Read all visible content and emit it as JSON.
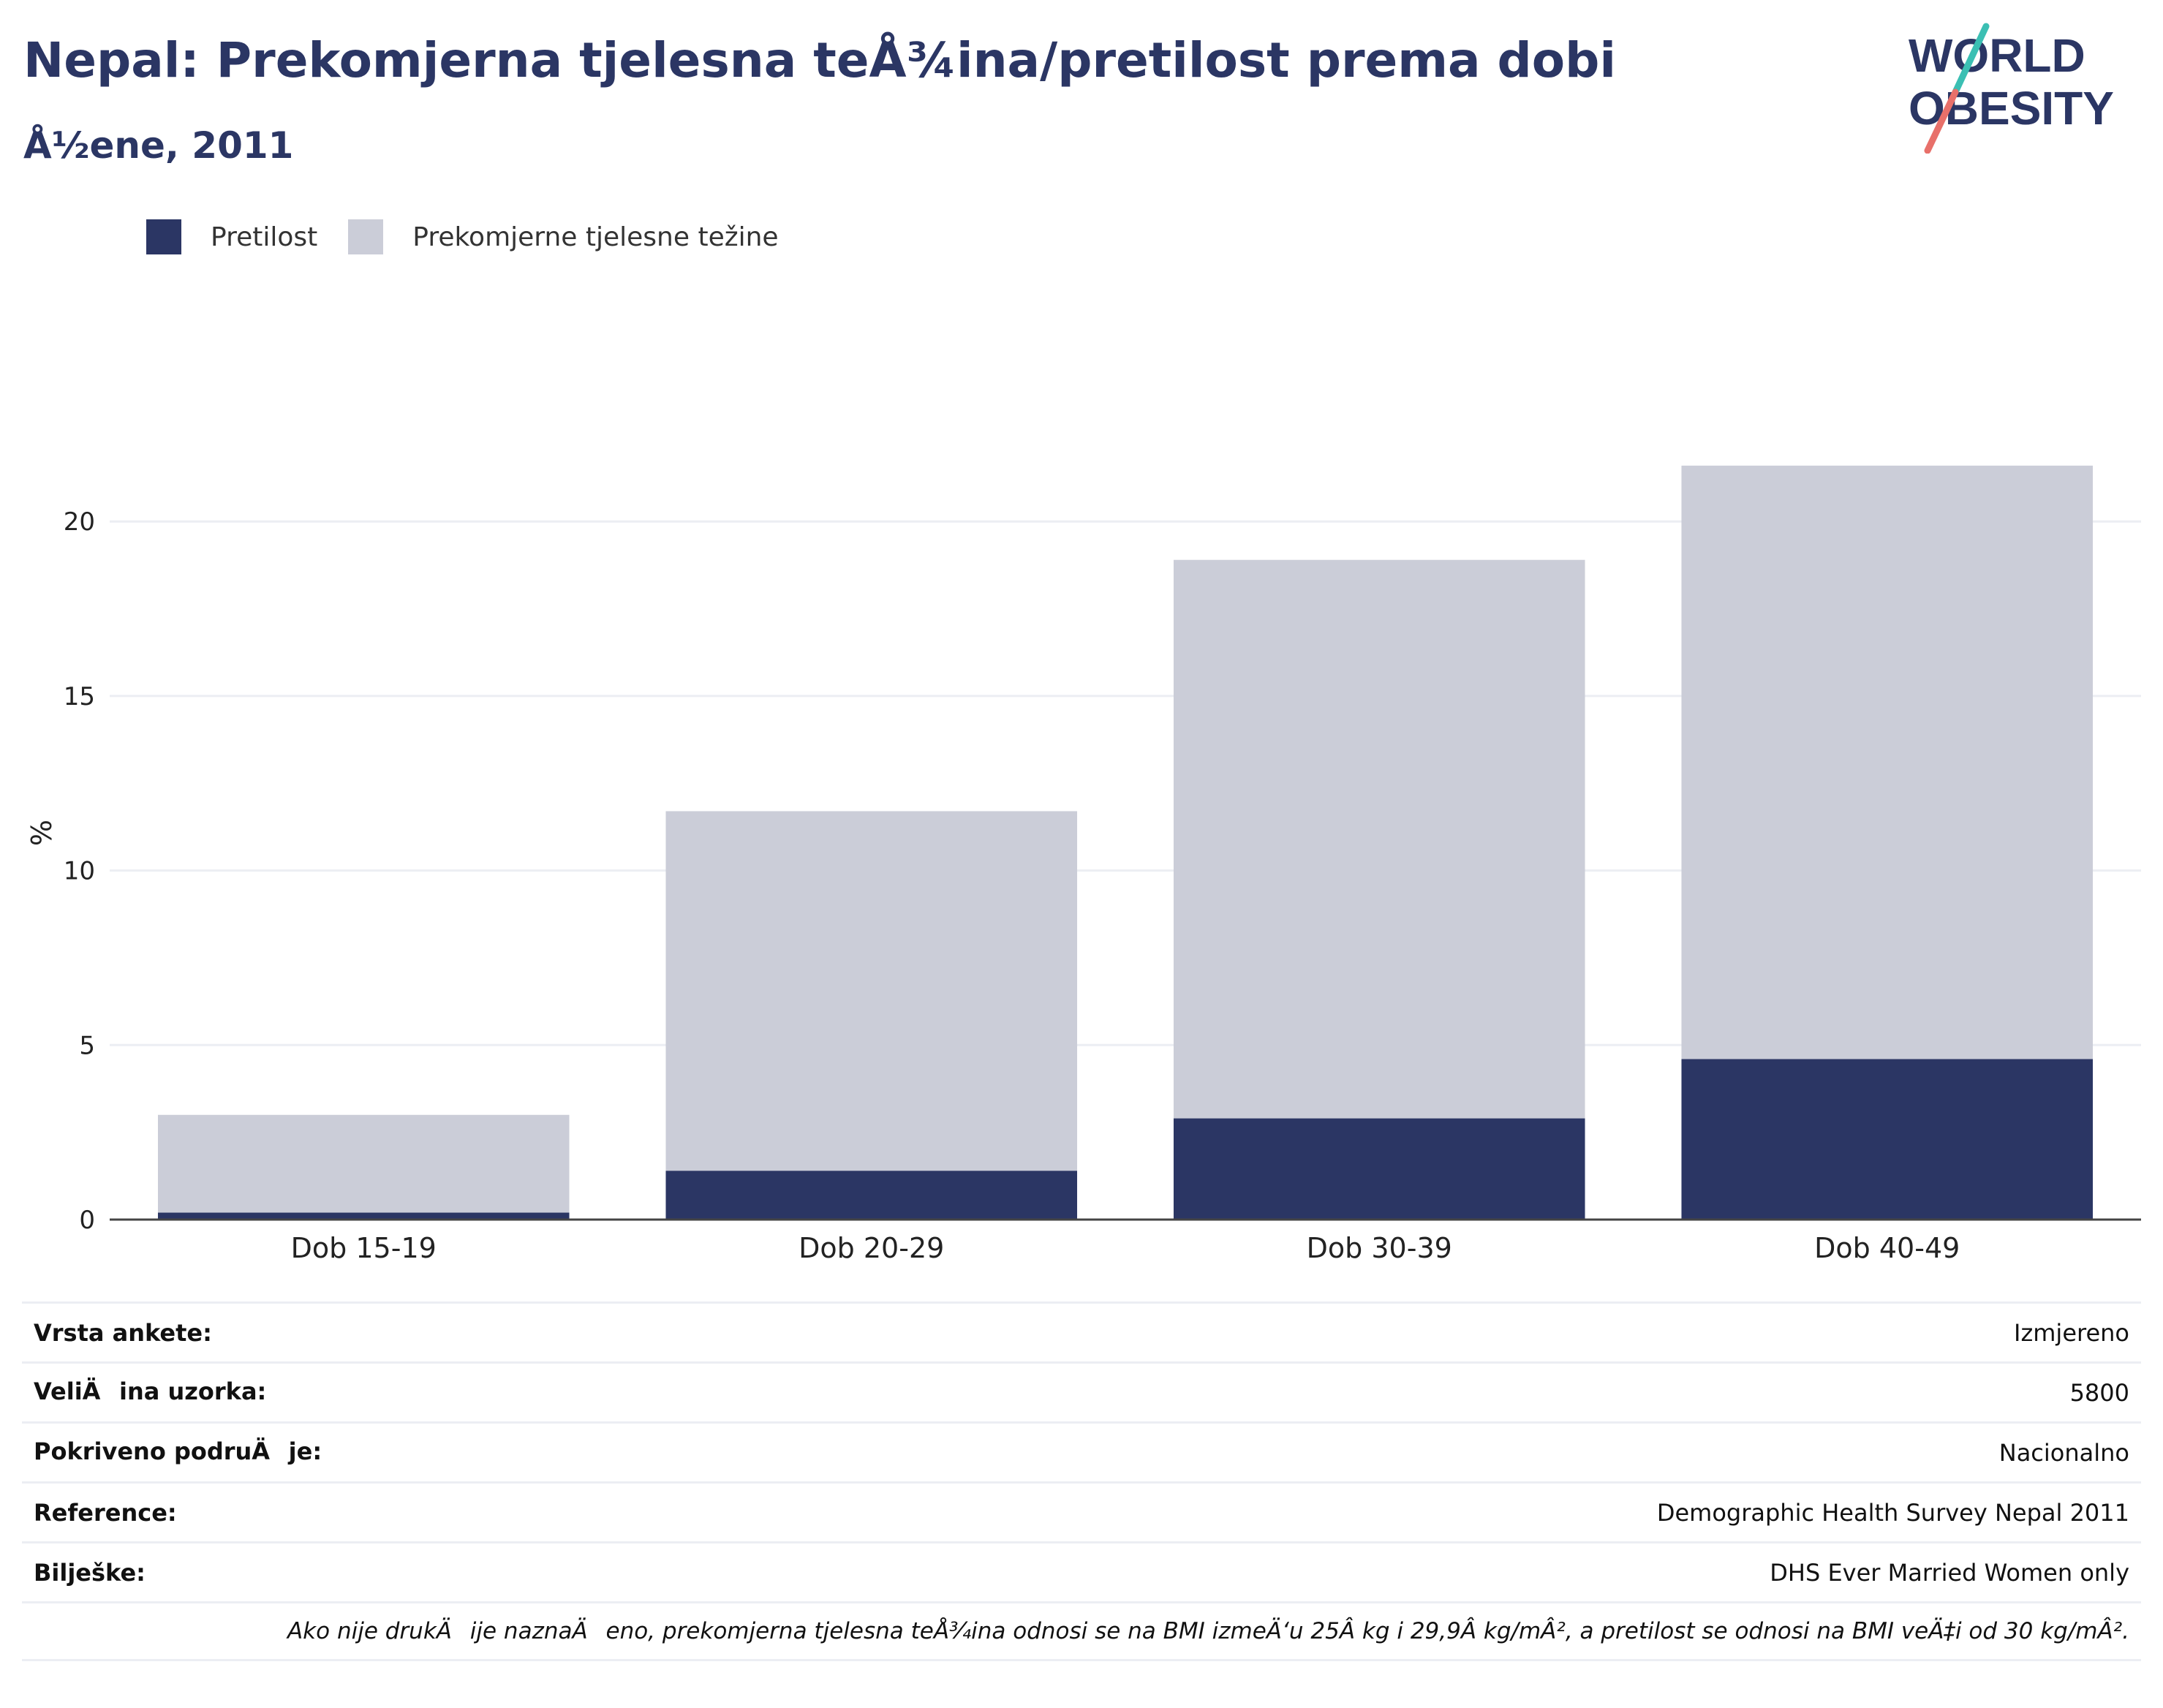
{
  "header": {
    "title": "Nepal: Prekomjerna tjelesna teÅ¾ina/pretilost prema dobi",
    "subtitle": "Å½ene, 2011"
  },
  "logo": {
    "line1": "WORLD",
    "line2": "OBESITY",
    "colors": {
      "text": "#2b3664",
      "slash_teal": "#3bbfb3",
      "slash_coral": "#e8706a"
    }
  },
  "legend": [
    {
      "label": "Pretilost",
      "color": "#2b3664"
    },
    {
      "label": "Prekomjerne tjelesne težine",
      "color": "#cbcdd8"
    }
  ],
  "chart_data": {
    "type": "bar",
    "stacked": true,
    "categories": [
      "Dob 15-19",
      "Dob 20-29",
      "Dob 30-39",
      "Dob 40-49"
    ],
    "series": [
      {
        "name": "Pretilost",
        "values": [
          0.2,
          1.4,
          2.9,
          4.6
        ],
        "color": "#2b3664"
      },
      {
        "name": "Prekomjerne tjelesne težine",
        "values": [
          2.8,
          10.3,
          16.0,
          17.0
        ],
        "color": "#cbcdd8"
      }
    ],
    "ylabel": "%",
    "ylim": [
      0,
      23
    ],
    "yticks": [
      0,
      5,
      10,
      15,
      20
    ],
    "grid": true,
    "legend_position": "top-left"
  },
  "info_table": [
    {
      "label": "Vrsta ankete:",
      "value": "Izmjereno"
    },
    {
      "label": "VeliÄina uzorka:",
      "value": "5800"
    },
    {
      "label": "Pokriveno podruÄje:",
      "value": "Nacionalno"
    },
    {
      "label": "Reference:",
      "value": "Demographic Health Survey Nepal 2011"
    },
    {
      "label": "Bilješke:",
      "value": "DHS Ever Married Women only"
    }
  ],
  "footnote": "Ako nije drukÄije naznaÄeno, prekomjerna tjelesna teÅ¾ina odnosi se na BMI izmeÄ‘u 25Â kg i 29,9Â kg/mÂ², a pretilost se odnosi na BMI veÄ‡i od 30 kg/mÂ²."
}
